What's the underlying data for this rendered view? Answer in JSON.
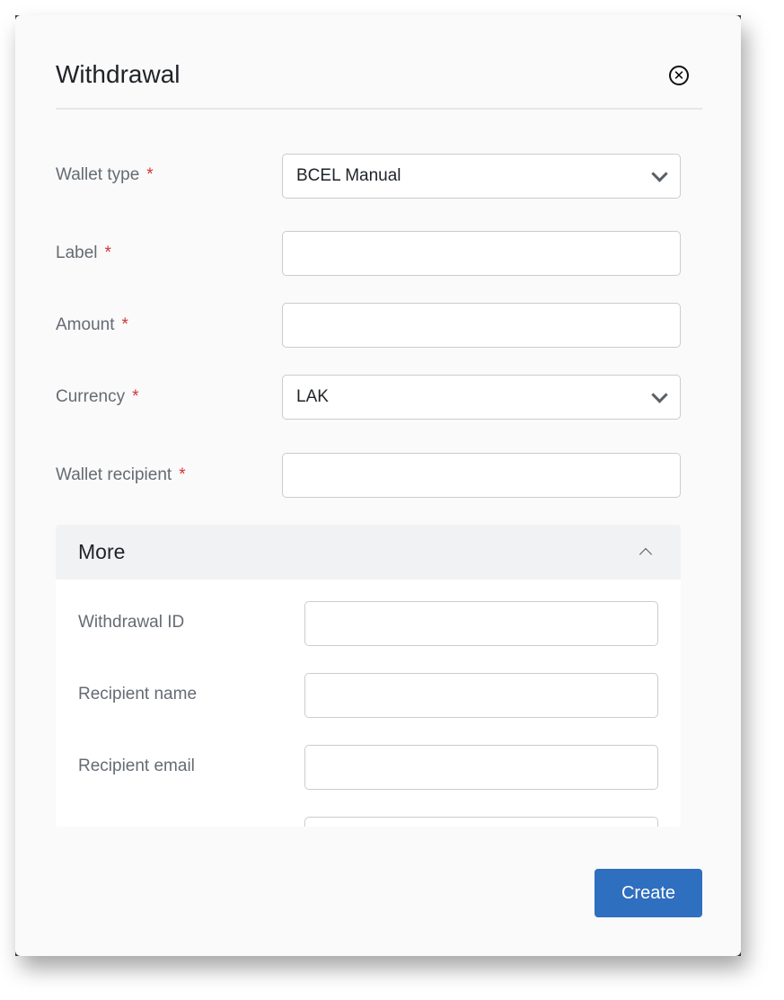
{
  "modal": {
    "title": "Withdrawal",
    "close_icon": "close-circle-icon"
  },
  "fields": [
    {
      "label": "Wallet type",
      "required": "*",
      "value": "BCEL Manual",
      "type": "select"
    },
    {
      "label": "Label",
      "required": "*",
      "value": ""
    },
    {
      "label": "Amount",
      "required": "*",
      "value": ""
    },
    {
      "label": "Currency",
      "required": "*",
      "value": "LAK",
      "type": "select"
    },
    {
      "label": "Wallet recipient",
      "required": "*",
      "value": ""
    }
  ],
  "more": {
    "title": "More",
    "expanded": true,
    "fields": [
      {
        "label": "Withdrawal ID",
        "value": ""
      },
      {
        "label": "Recipient name",
        "value": ""
      },
      {
        "label": "Recipient email",
        "value": ""
      }
    ]
  },
  "footer": {
    "create_label": "Create"
  },
  "colors": {
    "primary": "#2f6fbf",
    "required": "#d13438"
  }
}
